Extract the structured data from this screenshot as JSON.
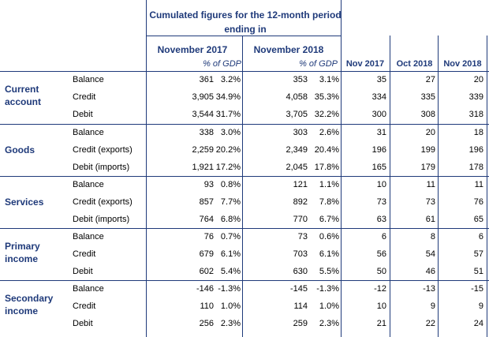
{
  "header": {
    "cumulated_title": "Cumulated figures for the 12-month period ending in",
    "col_nov2017": "November 2017",
    "col_nov2018": "November 2018",
    "pct_gdp": "% of GDP",
    "monthly": [
      "Nov 2017",
      "Oct 2018",
      "Nov 2018"
    ]
  },
  "sections": [
    {
      "title": "Current account",
      "rows": [
        {
          "label": "Balance",
          "v2017": "361",
          "p2017": "3.2%",
          "v2018": "353",
          "p2018": "3.1%",
          "m1": "35",
          "m2": "27",
          "m3": "20"
        },
        {
          "label": "Credit",
          "v2017": "3,905",
          "p2017": "34.9%",
          "v2018": "4,058",
          "p2018": "35.3%",
          "m1": "334",
          "m2": "335",
          "m3": "339"
        },
        {
          "label": "Debit",
          "v2017": "3,544",
          "p2017": "31.7%",
          "v2018": "3,705",
          "p2018": "32.2%",
          "m1": "300",
          "m2": "308",
          "m3": "318"
        }
      ]
    },
    {
      "title": "Goods",
      "rows": [
        {
          "label": "Balance",
          "v2017": "338",
          "p2017": "3.0%",
          "v2018": "303",
          "p2018": "2.6%",
          "m1": "31",
          "m2": "20",
          "m3": "18"
        },
        {
          "label": "Credit (exports)",
          "v2017": "2,259",
          "p2017": "20.2%",
          "v2018": "2,349",
          "p2018": "20.4%",
          "m1": "196",
          "m2": "199",
          "m3": "196"
        },
        {
          "label": "Debit (imports)",
          "v2017": "1,921",
          "p2017": "17.2%",
          "v2018": "2,045",
          "p2018": "17.8%",
          "m1": "165",
          "m2": "179",
          "m3": "178"
        }
      ]
    },
    {
      "title": "Services",
      "rows": [
        {
          "label": "Balance",
          "v2017": "93",
          "p2017": "0.8%",
          "v2018": "121",
          "p2018": "1.1%",
          "m1": "10",
          "m2": "11",
          "m3": "11"
        },
        {
          "label": "Credit (exports)",
          "v2017": "857",
          "p2017": "7.7%",
          "v2018": "892",
          "p2018": "7.8%",
          "m1": "73",
          "m2": "73",
          "m3": "76"
        },
        {
          "label": "Debit (imports)",
          "v2017": "764",
          "p2017": "6.8%",
          "v2018": "770",
          "p2018": "6.7%",
          "m1": "63",
          "m2": "61",
          "m3": "65"
        }
      ]
    },
    {
      "title": "Primary income",
      "rows": [
        {
          "label": "Balance",
          "v2017": "76",
          "p2017": "0.7%",
          "v2018": "73",
          "p2018": "0.6%",
          "m1": "6",
          "m2": "8",
          "m3": "6"
        },
        {
          "label": "Credit",
          "v2017": "679",
          "p2017": "6.1%",
          "v2018": "703",
          "p2018": "6.1%",
          "m1": "56",
          "m2": "54",
          "m3": "57"
        },
        {
          "label": "Debit",
          "v2017": "602",
          "p2017": "5.4%",
          "v2018": "630",
          "p2018": "5.5%",
          "m1": "50",
          "m2": "46",
          "m3": "51"
        }
      ]
    },
    {
      "title": "Secondary income",
      "rows": [
        {
          "label": "Balance",
          "v2017": "-146",
          "p2017": "-1.3%",
          "v2018": "-145",
          "p2018": "-1.3%",
          "m1": "-12",
          "m2": "-13",
          "m3": "-15"
        },
        {
          "label": "Credit",
          "v2017": "110",
          "p2017": "1.0%",
          "v2018": "114",
          "p2018": "1.0%",
          "m1": "10",
          "m2": "9",
          "m3": "9"
        },
        {
          "label": "Debit",
          "v2017": "256",
          "p2017": "2.3%",
          "v2018": "259",
          "p2018": "2.3%",
          "m1": "21",
          "m2": "22",
          "m3": "24"
        }
      ]
    }
  ]
}
